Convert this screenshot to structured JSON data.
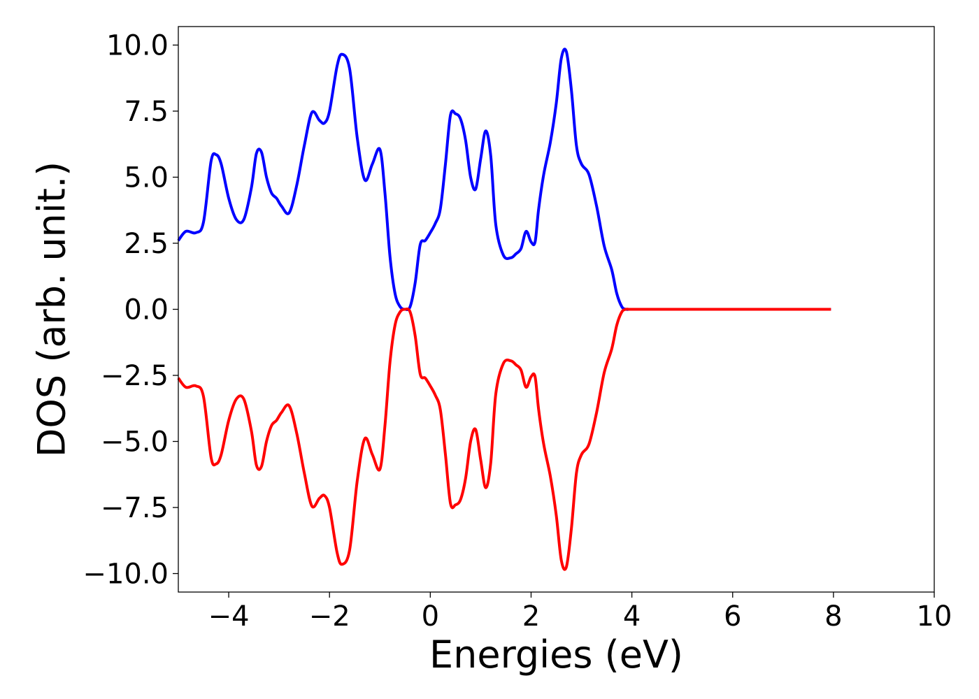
{
  "chart_data": {
    "type": "line",
    "title": "",
    "xlabel": "Energies (eV)",
    "ylabel": "DOS (arb. unit.)",
    "xlim": [
      -5,
      10
    ],
    "ylim": [
      -10.7,
      10.7
    ],
    "xticks": [
      -4,
      -2,
      0,
      2,
      4,
      6,
      8,
      10
    ],
    "xtick_labels": [
      "−4",
      "−2",
      "0",
      "2",
      "4",
      "6",
      "8",
      "10"
    ],
    "yticks": [
      10.0,
      7.5,
      5.0,
      2.5,
      0.0,
      -2.5,
      -5.0,
      -7.5,
      -10.0
    ],
    "ytick_labels": [
      "10.0",
      "7.5",
      "5.0",
      "2.5",
      "0.0",
      "−2.5",
      "−5.0",
      "−7.5",
      "−10.0"
    ],
    "grid": false,
    "legend": false,
    "series": [
      {
        "color": "#0000ff",
        "x": [
          -5.0,
          -4.85,
          -4.65,
          -4.5,
          -4.35,
          -4.25,
          -4.15,
          -4.0,
          -3.85,
          -3.7,
          -3.55,
          -3.45,
          -3.35,
          -3.25,
          -3.15,
          -3.05,
          -2.95,
          -2.8,
          -2.65,
          -2.5,
          -2.35,
          -2.2,
          -2.1,
          -2.0,
          -1.85,
          -1.75,
          -1.6,
          -1.45,
          -1.3,
          -1.15,
          -1.0,
          -0.9,
          -0.8,
          -0.7,
          -0.6,
          -0.5,
          -0.4,
          -0.3,
          -0.2,
          -0.1,
          0.0,
          0.1,
          0.2,
          0.3,
          0.4,
          0.5,
          0.6,
          0.7,
          0.8,
          0.9,
          1.0,
          1.1,
          1.2,
          1.3,
          1.45,
          1.6,
          1.7,
          1.8,
          1.9,
          2.0,
          2.08,
          2.15,
          2.25,
          2.38,
          2.5,
          2.6,
          2.7,
          2.8,
          2.9,
          3.0,
          3.15,
          3.3,
          3.45,
          3.6,
          3.7,
          3.8,
          3.88,
          3.95,
          4.05,
          4.15,
          4.3,
          4.4,
          4.5,
          4.6,
          4.68,
          4.75,
          4.85,
          4.95,
          5.05,
          5.2,
          5.35,
          5.45,
          5.6,
          5.75,
          5.9,
          6.0,
          6.1,
          6.2,
          6.35,
          6.5,
          7.0,
          7.5,
          7.95
        ],
        "y": [
          2.6,
          2.95,
          2.9,
          3.3,
          5.6,
          5.85,
          5.5,
          4.2,
          3.4,
          3.4,
          4.6,
          5.9,
          5.95,
          5.0,
          4.4,
          4.2,
          3.9,
          3.65,
          4.7,
          6.2,
          7.45,
          7.15,
          7.05,
          7.5,
          9.2,
          9.65,
          9.1,
          6.5,
          4.9,
          5.5,
          6.05,
          4.4,
          2.0,
          0.6,
          0.1,
          0.0,
          0.1,
          1.0,
          2.45,
          2.6,
          2.9,
          3.25,
          3.8,
          5.5,
          7.35,
          7.4,
          7.2,
          6.4,
          5.0,
          4.55,
          5.7,
          6.75,
          5.8,
          3.2,
          2.05,
          1.95,
          2.1,
          2.3,
          2.95,
          2.55,
          2.55,
          3.8,
          5.1,
          6.3,
          7.8,
          9.5,
          9.75,
          8.3,
          6.2,
          5.5,
          5.1,
          3.9,
          2.4,
          1.5,
          0.6,
          0.1,
          0.0,
          0.0,
          0.0,
          0.0,
          0.0,
          0.0,
          0.0,
          0.0,
          0.0,
          0.0,
          0.0,
          0.0,
          0.0,
          0.0,
          0.0,
          0.0,
          0.0,
          0.0,
          0.0,
          0.0,
          0.0,
          0.0,
          0.0,
          0.0,
          0.0,
          0.0,
          0.0
        ]
      },
      {
        "color": "#ff0000",
        "x": [
          -5.0,
          -4.85,
          -4.65,
          -4.5,
          -4.35,
          -4.25,
          -4.15,
          -4.0,
          -3.85,
          -3.7,
          -3.55,
          -3.45,
          -3.35,
          -3.25,
          -3.15,
          -3.05,
          -2.95,
          -2.8,
          -2.65,
          -2.5,
          -2.35,
          -2.2,
          -2.1,
          -2.0,
          -1.85,
          -1.75,
          -1.6,
          -1.45,
          -1.3,
          -1.15,
          -1.0,
          -0.9,
          -0.8,
          -0.7,
          -0.6,
          -0.5,
          -0.4,
          -0.3,
          -0.2,
          -0.1,
          0.0,
          0.1,
          0.2,
          0.3,
          0.4,
          0.5,
          0.6,
          0.7,
          0.8,
          0.9,
          1.0,
          1.1,
          1.2,
          1.3,
          1.45,
          1.6,
          1.7,
          1.8,
          1.9,
          2.0,
          2.08,
          2.15,
          2.25,
          2.38,
          2.5,
          2.6,
          2.7,
          2.8,
          2.9,
          3.0,
          3.15,
          3.3,
          3.45,
          3.6,
          3.7,
          3.8,
          3.88,
          3.95,
          4.05,
          4.15,
          4.3,
          4.4,
          4.5,
          4.6,
          4.68,
          4.75,
          4.85,
          4.95,
          5.05,
          5.2,
          5.35,
          5.45,
          5.6,
          5.75,
          5.9,
          6.0,
          6.1,
          6.2,
          6.35,
          6.5,
          7.0,
          7.5,
          7.95
        ],
        "y": [
          -2.6,
          -2.95,
          -2.9,
          -3.3,
          -5.6,
          -5.85,
          -5.5,
          -4.2,
          -3.4,
          -3.4,
          -4.6,
          -5.9,
          -5.95,
          -5.0,
          -4.4,
          -4.2,
          -3.9,
          -3.65,
          -4.7,
          -6.2,
          -7.45,
          -7.15,
          -7.05,
          -7.5,
          -9.2,
          -9.65,
          -9.1,
          -6.5,
          -4.9,
          -5.5,
          -6.05,
          -4.4,
          -2.0,
          -0.6,
          -0.1,
          0.0,
          -0.1,
          -1.0,
          -2.45,
          -2.6,
          -2.9,
          -3.25,
          -3.8,
          -5.5,
          -7.35,
          -7.4,
          -7.2,
          -6.4,
          -5.0,
          -4.55,
          -5.7,
          -6.75,
          -5.8,
          -3.2,
          -2.05,
          -1.95,
          -2.1,
          -2.3,
          -2.95,
          -2.55,
          -2.55,
          -3.8,
          -5.1,
          -6.3,
          -7.8,
          -9.5,
          -9.75,
          -8.3,
          -6.2,
          -5.5,
          -5.1,
          -3.9,
          -2.4,
          -1.5,
          -0.6,
          -0.1,
          0.0,
          0.0,
          0.0,
          0.0,
          0.0,
          0.0,
          0.0,
          0.0,
          0.0,
          0.0,
          0.0,
          0.0,
          0.0,
          0.0,
          0.0,
          0.0,
          0.0,
          0.0,
          0.0,
          0.0,
          0.0,
          0.0,
          0.0,
          0.0,
          0.0,
          0.0,
          0.0
        ]
      }
    ]
  }
}
